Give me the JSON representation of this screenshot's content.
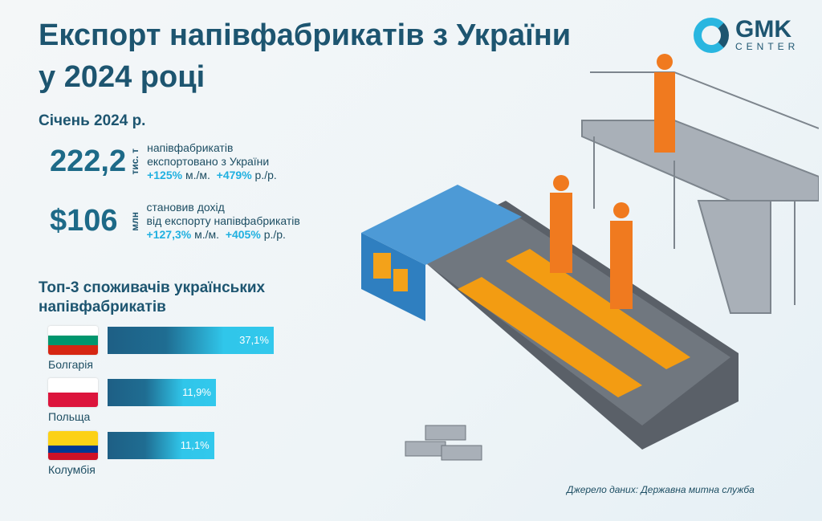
{
  "header": {
    "title_line1": "Експорт напівфабрикатів з України",
    "title_line2": "у 2024 році",
    "logo_main": "GMK",
    "logo_sub": "CENTER"
  },
  "period": "Січень 2024 р.",
  "stats": [
    {
      "value": "222,2",
      "unit": "тис. т",
      "line1": "напівфабрикатів",
      "line2": "експортовано з України",
      "mom": "+125%",
      "mom_label": "м./м.",
      "yoy": "+479%",
      "yoy_label": "р./р."
    },
    {
      "value": "$106",
      "unit": "млн",
      "line1": "становив дохід",
      "line2": "від експорту напівфабрикатів",
      "mom": "+127,3%",
      "mom_label": "м./м.",
      "yoy": "+405%",
      "yoy_label": "р./р."
    }
  ],
  "top3_title_line1": "Топ-3 споживачів українських",
  "top3_title_line2": "напівфабрикатів",
  "chart_data": {
    "type": "bar",
    "title": "Топ-3 споживачів українських напівфабрикатів",
    "categories": [
      "Болгарія",
      "Польща",
      "Колумбія"
    ],
    "values": [
      37.1,
      11.9,
      11.1
    ],
    "labels": [
      "37,1%",
      "11,9%",
      "11,1%"
    ],
    "unit": "%",
    "flags": [
      [
        "#ffffff",
        "#00966e",
        "#d62612"
      ],
      [
        "#ffffff",
        "#dc143c"
      ],
      [
        "#fcd116",
        "#003893",
        "#ce1126"
      ]
    ]
  },
  "source": "Джерело даних: Державна митна служба",
  "colors": {
    "primary": "#1d5570",
    "accent": "#20b0e0"
  }
}
